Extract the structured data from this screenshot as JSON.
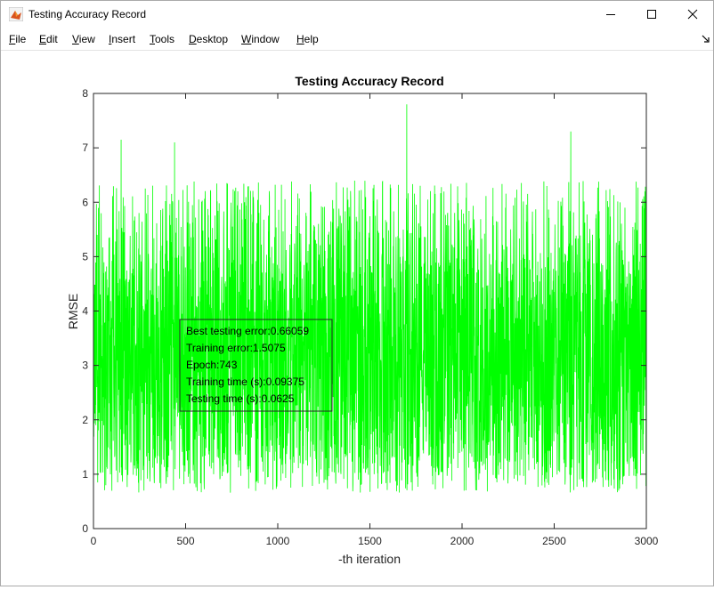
{
  "window": {
    "title": "Testing Accuracy Record",
    "controls": {
      "minimize": "minimize",
      "maximize": "maximize",
      "close": "close"
    }
  },
  "menu": {
    "items": [
      "File",
      "Edit",
      "View",
      "Insert",
      "Tools",
      "Desktop",
      "Window",
      "Help"
    ]
  },
  "icons": {
    "app": "matlab-icon",
    "dock": "dock-arrow-icon"
  },
  "colors": {
    "series": "#00ff00",
    "axes": "#262626",
    "annotation_border": "#262626"
  },
  "annotation": {
    "lines": [
      "Best testing error:0.66059",
      "Training error:1.5075",
      "Epoch:743",
      "Training time (s):0.09375",
      "Testing time (s):0.0625"
    ]
  },
  "chart_data": {
    "type": "line",
    "title": "Testing Accuracy Record",
    "xlabel": "-th iteration",
    "ylabel": "RMSE",
    "xlim": [
      0,
      3000
    ],
    "ylim": [
      0,
      8
    ],
    "xticks": [
      0,
      500,
      1000,
      1500,
      2000,
      2500,
      3000
    ],
    "yticks": [
      0,
      1,
      2,
      3,
      4,
      5,
      6,
      7,
      8
    ],
    "grid": false,
    "series": [
      {
        "color": "#00ff00",
        "n_points": 3000,
        "min": 0.66059,
        "max": 7.8,
        "typical_range": [
          1.0,
          5.0
        ],
        "peaks": [
          {
            "x": 150,
            "y": 7.15
          },
          {
            "x": 440,
            "y": 7.1
          },
          {
            "x": 1700,
            "y": 7.8
          },
          {
            "x": 2590,
            "y": 7.3
          }
        ]
      }
    ]
  }
}
